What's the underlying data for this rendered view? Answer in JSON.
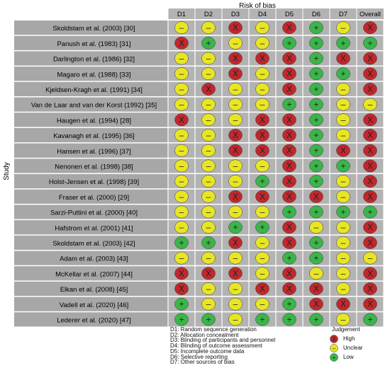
{
  "chart_data": {
    "type": "table",
    "title": "Risk of bias",
    "ylabel": "Study",
    "domains": [
      "D1",
      "D2",
      "D3",
      "D4",
      "D5",
      "D6",
      "D7",
      "Overall"
    ],
    "studies": [
      "Skoldstam et al. (2003) [30]",
      "Panush et al. (1983) [31]",
      "Darlington et al. (1986) [32]",
      "Magaro et al. (1988) [33]",
      "Kjeldsen-Kragh et al. (1991) [34]",
      "Van de Laar and van der Korst (1992) [35]",
      "Haugen et al. (1994) [28]",
      "Kavanagh et al. (1995) [36]",
      "Hansen et al. (1996) [37]",
      "Nenonen et al. (1998) [38]",
      "Holst-Jensen et al. (1998) [39]",
      "Fraser et al. (2000) [29]",
      "Sarzi-Puttini et al. (2000) [40]",
      "Hafstrom et al. (2001) [41]",
      "Skoldstam et al. (2003) [42]",
      "Adam et al. (2003) [43]",
      "McKellar et al. (2007) [44]",
      "Elkan et al. (2008) [45]",
      "Vadell et al. (2020) [46]",
      "Lederer et al.  (2020) [47]"
    ],
    "judgements": [
      [
        "-",
        "-",
        "X",
        "-",
        "X",
        "+",
        "-",
        "X"
      ],
      [
        "X",
        "+",
        "-",
        "-",
        "+",
        "+",
        "+",
        "+"
      ],
      [
        "-",
        "-",
        "X",
        "X",
        "X",
        "+",
        "X",
        "X"
      ],
      [
        "-",
        "-",
        "X",
        "-",
        "X",
        "+",
        "+",
        "X"
      ],
      [
        "-",
        "X",
        "-",
        "-",
        "X",
        "+",
        "-",
        "X"
      ],
      [
        "-",
        "-",
        "-",
        "-",
        "+",
        "+",
        "-",
        "-"
      ],
      [
        "X",
        "-",
        "-",
        "X",
        "X",
        "+",
        "-",
        "X"
      ],
      [
        "-",
        "-",
        "X",
        "X",
        "X",
        "+",
        "-",
        "X"
      ],
      [
        "-",
        "-",
        "X",
        "X",
        "X",
        "+",
        "X",
        "X"
      ],
      [
        "-",
        "-",
        "-",
        "-",
        "X",
        "+",
        "+",
        "X"
      ],
      [
        "-",
        "-",
        "-",
        "+",
        "X",
        "+",
        "-",
        "X"
      ],
      [
        "-",
        "-",
        "X",
        "X",
        "X",
        "X",
        "-",
        "X"
      ],
      [
        "-",
        "-",
        "-",
        "-",
        "+",
        "+",
        "+",
        "+"
      ],
      [
        "-",
        "-",
        "+",
        "+",
        "X",
        "-",
        "-",
        "X"
      ],
      [
        "+",
        "+",
        "X",
        "-",
        "X",
        "+",
        "-",
        "X"
      ],
      [
        "-",
        "-",
        "-",
        "-",
        "+",
        "+",
        "-",
        "-"
      ],
      [
        "X",
        "X",
        "X",
        "-",
        "X",
        "-",
        "-",
        "X"
      ],
      [
        "X",
        "-",
        "-",
        "X",
        "X",
        "X",
        "-",
        "X"
      ],
      [
        "+",
        "-",
        "-",
        "-",
        "+",
        "X",
        "X",
        "X"
      ],
      [
        "+",
        "+",
        "-",
        "+",
        "+",
        "+",
        "-",
        "+"
      ]
    ],
    "legend_domains": [
      "D1: Random sequence generation",
      "D2: Allocation concealment",
      "D3: Blinding of participants and personnel",
      "D4: Blinding of outcome assessment",
      "D5: Incomplete outcome data",
      "D6: Selective reporting",
      "D7: Other sources of bias"
    ],
    "judgement_legend": {
      "title": "Judgement",
      "items": [
        {
          "symbol": "X",
          "label": "High"
        },
        {
          "symbol": "-",
          "label": "Unclear"
        },
        {
          "symbol": "+",
          "label": "Low"
        }
      ]
    },
    "colors": {
      "high": "#c0282d",
      "unclear": "#e8e624",
      "low": "#3bb54a",
      "header": "#b3b3b3",
      "row": "#a7a7a7",
      "grid": "#ffffff"
    }
  }
}
